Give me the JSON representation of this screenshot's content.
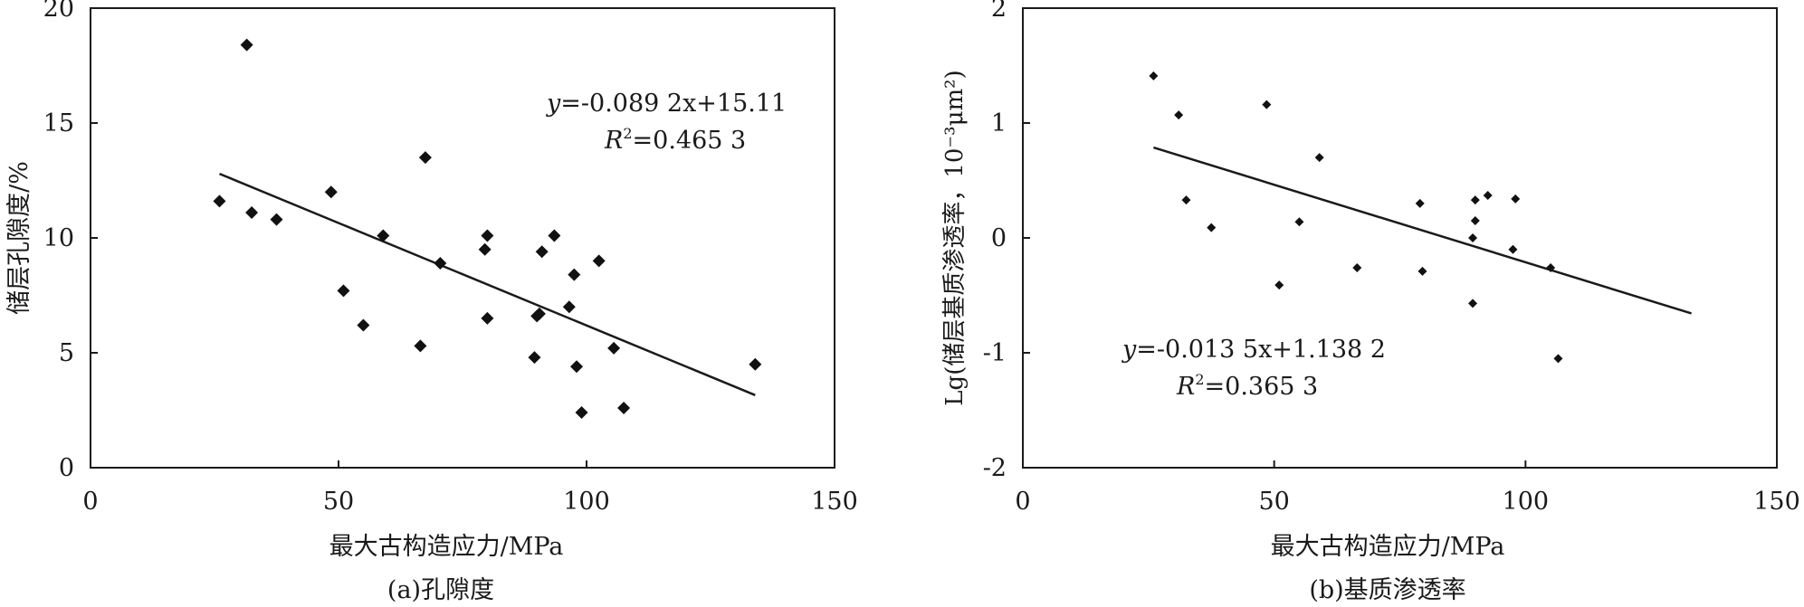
{
  "chart_data": [
    {
      "type": "scatter",
      "caption": "(a)孔隙度",
      "xlabel": "最大古构造应力/MPa",
      "ylabel": "储层孔隙度/%",
      "xlim": [
        0,
        150
      ],
      "ylim": [
        0,
        20
      ],
      "xticks": [
        0,
        50,
        100,
        150
      ],
      "yticks": [
        0,
        5,
        10,
        15,
        20
      ],
      "grid": false,
      "series": [
        {
          "points": [
            [
              26,
              11.6
            ],
            [
              31.5,
              18.4
            ],
            [
              32.5,
              11.1
            ],
            [
              37.5,
              10.8
            ],
            [
              48.5,
              12.0
            ],
            [
              51,
              7.7
            ],
            [
              55,
              6.2
            ],
            [
              59,
              10.1
            ],
            [
              66.5,
              5.3
            ],
            [
              67.5,
              13.5
            ],
            [
              70.5,
              8.9
            ],
            [
              79.5,
              9.5
            ],
            [
              80,
              10.1
            ],
            [
              80,
              6.5
            ],
            [
              89.5,
              4.8
            ],
            [
              90,
              6.6
            ],
            [
              90.5,
              6.7
            ],
            [
              91,
              9.4
            ],
            [
              93.5,
              10.1
            ],
            [
              96.5,
              7.0
            ],
            [
              97.5,
              8.4
            ],
            [
              98,
              4.4
            ],
            [
              99,
              2.4
            ],
            [
              102.5,
              9.0
            ],
            [
              105.5,
              5.2
            ],
            [
              107.5,
              2.6
            ],
            [
              134,
              4.5
            ]
          ]
        }
      ],
      "fit": {
        "slope": -0.0892,
        "intercept": 15.11,
        "x_range": [
          26,
          134
        ]
      },
      "equation_y": "y",
      "equation_rest": "=-0.089 2x+15.11",
      "r2_R": "R",
      "r2_rest": "=0.465 3"
    },
    {
      "type": "scatter",
      "caption": "(b)基质渗透率",
      "xlabel": "最大古构造应力/MPa",
      "ylabel": "Lg(储层基质渗透率，10⁻³μm²)",
      "xlim": [
        0,
        150
      ],
      "ylim": [
        -2,
        2
      ],
      "xticks": [
        0,
        50,
        100,
        150
      ],
      "yticks": [
        -2,
        -1,
        0,
        1,
        2
      ],
      "grid": false,
      "series": [
        {
          "points": [
            [
              26,
              1.41
            ],
            [
              31,
              1.07
            ],
            [
              32.5,
              0.33
            ],
            [
              37.5,
              0.09
            ],
            [
              48.5,
              1.16
            ],
            [
              51,
              -0.41
            ],
            [
              55,
              0.14
            ],
            [
              59,
              0.7
            ],
            [
              66.5,
              -0.26
            ],
            [
              79,
              0.3
            ],
            [
              79.5,
              -0.29
            ],
            [
              89.5,
              -0.57
            ],
            [
              89.5,
              0.0
            ],
            [
              90,
              0.15
            ],
            [
              90,
              0.33
            ],
            [
              92.5,
              0.37
            ],
            [
              97.5,
              -0.1
            ],
            [
              98,
              0.34
            ],
            [
              105,
              -0.26
            ],
            [
              106.5,
              -1.05
            ]
          ]
        }
      ],
      "fit": {
        "slope": -0.0135,
        "intercept": 1.1382,
        "x_range": [
          26,
          133
        ]
      },
      "equation_y": "y",
      "equation_rest": "=-0.013 5x+1.138 2",
      "r2_R": "R",
      "r2_rest": "=0.365 3"
    }
  ]
}
